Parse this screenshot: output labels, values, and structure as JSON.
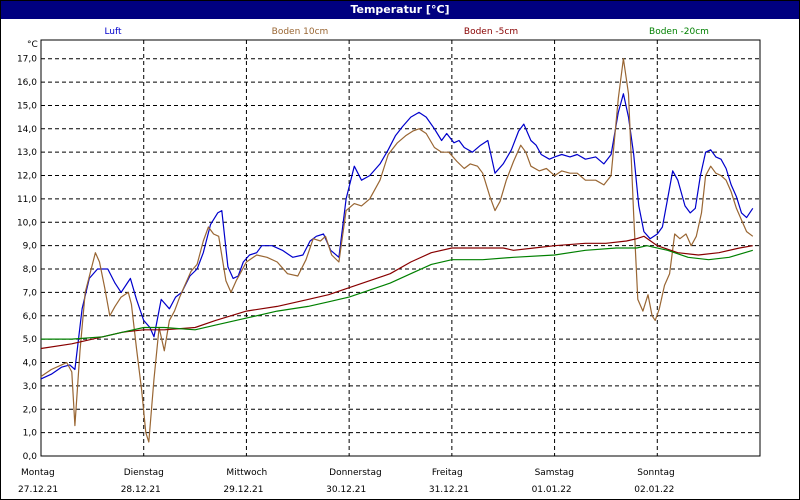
{
  "window": {
    "title": "Temperatur [°C]"
  },
  "chart_data": {
    "type": "line",
    "title": "Temperatur [°C]",
    "ylabel": "°C",
    "ylim": [
      0,
      17.8
    ],
    "yticks": [
      "0,0",
      "1,0",
      "2,0",
      "3,0",
      "4,0",
      "5,0",
      "6,0",
      "7,0",
      "8,0",
      "9,0",
      "10,0",
      "11,0",
      "12,0",
      "13,0",
      "14,0",
      "15,0",
      "16,0",
      "17,0"
    ],
    "xlim": [
      0,
      7
    ],
    "days": [
      {
        "name": "Montag",
        "date": "27.12.21"
      },
      {
        "name": "Dienstag",
        "date": "28.12.21"
      },
      {
        "name": "Mittwoch",
        "date": "29.12.21"
      },
      {
        "name": "Donnerstag",
        "date": "30.12.21"
      },
      {
        "name": "Freitag",
        "date": "31.12.21"
      },
      {
        "name": "Samstag",
        "date": "01.01.22"
      },
      {
        "name": "Sonntag",
        "date": "02.01.22"
      }
    ],
    "grid": true,
    "legend_position": "top",
    "series": [
      {
        "name": "Luft",
        "color": "#0000cc",
        "points": [
          [
            0,
            3.3
          ],
          [
            0.1,
            3.5
          ],
          [
            0.2,
            3.8
          ],
          [
            0.28,
            3.9
          ],
          [
            0.33,
            3.7
          ],
          [
            0.4,
            6.3
          ],
          [
            0.47,
            7.6
          ],
          [
            0.55,
            8.0
          ],
          [
            0.65,
            8.0
          ],
          [
            0.72,
            7.4
          ],
          [
            0.78,
            7.0
          ],
          [
            0.87,
            7.6
          ],
          [
            0.93,
            6.7
          ],
          [
            1.0,
            5.8
          ],
          [
            1.06,
            5.5
          ],
          [
            1.1,
            5.1
          ],
          [
            1.17,
            6.7
          ],
          [
            1.25,
            6.3
          ],
          [
            1.31,
            6.8
          ],
          [
            1.37,
            7.0
          ],
          [
            1.45,
            7.7
          ],
          [
            1.52,
            8.0
          ],
          [
            1.58,
            8.7
          ],
          [
            1.65,
            9.9
          ],
          [
            1.72,
            10.4
          ],
          [
            1.76,
            10.5
          ],
          [
            1.82,
            8.1
          ],
          [
            1.87,
            7.6
          ],
          [
            1.92,
            7.7
          ],
          [
            1.97,
            8.3
          ],
          [
            2.03,
            8.6
          ],
          [
            2.1,
            8.7
          ],
          [
            2.15,
            9.0
          ],
          [
            2.25,
            9.0
          ],
          [
            2.35,
            8.8
          ],
          [
            2.45,
            8.5
          ],
          [
            2.55,
            8.6
          ],
          [
            2.62,
            9.2
          ],
          [
            2.68,
            9.4
          ],
          [
            2.75,
            9.5
          ],
          [
            2.82,
            8.8
          ],
          [
            2.9,
            8.5
          ],
          [
            2.97,
            11.0
          ],
          [
            3.05,
            12.4
          ],
          [
            3.12,
            11.8
          ],
          [
            3.2,
            12.0
          ],
          [
            3.3,
            12.5
          ],
          [
            3.38,
            13.1
          ],
          [
            3.45,
            13.7
          ],
          [
            3.52,
            14.1
          ],
          [
            3.6,
            14.5
          ],
          [
            3.68,
            14.7
          ],
          [
            3.75,
            14.5
          ],
          [
            3.83,
            14.0
          ],
          [
            3.9,
            13.5
          ],
          [
            3.95,
            13.8
          ],
          [
            4.02,
            13.4
          ],
          [
            4.07,
            13.5
          ],
          [
            4.12,
            13.2
          ],
          [
            4.2,
            13.0
          ],
          [
            4.28,
            13.3
          ],
          [
            4.35,
            13.5
          ],
          [
            4.42,
            12.1
          ],
          [
            4.5,
            12.5
          ],
          [
            4.58,
            13.1
          ],
          [
            4.65,
            13.9
          ],
          [
            4.7,
            14.2
          ],
          [
            4.77,
            13.5
          ],
          [
            4.82,
            13.3
          ],
          [
            4.87,
            12.9
          ],
          [
            4.95,
            12.7
          ],
          [
            5.0,
            12.8
          ],
          [
            5.07,
            12.9
          ],
          [
            5.15,
            12.8
          ],
          [
            5.22,
            12.9
          ],
          [
            5.3,
            12.7
          ],
          [
            5.4,
            12.8
          ],
          [
            5.48,
            12.5
          ],
          [
            5.55,
            12.9
          ],
          [
            5.62,
            14.7
          ],
          [
            5.67,
            15.5
          ],
          [
            5.72,
            14.5
          ],
          [
            5.77,
            12.9
          ],
          [
            5.82,
            10.7
          ],
          [
            5.87,
            9.6
          ],
          [
            5.93,
            9.3
          ],
          [
            6.0,
            9.5
          ],
          [
            6.05,
            9.8
          ],
          [
            6.1,
            11.0
          ],
          [
            6.15,
            12.2
          ],
          [
            6.2,
            11.8
          ],
          [
            6.27,
            10.7
          ],
          [
            6.32,
            10.4
          ],
          [
            6.37,
            10.6
          ],
          [
            6.42,
            12.0
          ],
          [
            6.47,
            13.0
          ],
          [
            6.52,
            13.1
          ],
          [
            6.57,
            12.8
          ],
          [
            6.62,
            12.7
          ],
          [
            6.67,
            12.3
          ],
          [
            6.72,
            11.6
          ],
          [
            6.77,
            11.1
          ],
          [
            6.82,
            10.4
          ],
          [
            6.87,
            10.2
          ],
          [
            6.93,
            10.6
          ]
        ]
      },
      {
        "name": "Boden 10cm",
        "color": "#996633",
        "points": [
          [
            0,
            3.4
          ],
          [
            0.1,
            3.7
          ],
          [
            0.2,
            3.9
          ],
          [
            0.25,
            4.0
          ],
          [
            0.3,
            3.6
          ],
          [
            0.33,
            1.3
          ],
          [
            0.38,
            4.5
          ],
          [
            0.43,
            7.0
          ],
          [
            0.5,
            8.2
          ],
          [
            0.53,
            8.7
          ],
          [
            0.57,
            8.3
          ],
          [
            0.62,
            7.2
          ],
          [
            0.67,
            6.0
          ],
          [
            0.72,
            6.4
          ],
          [
            0.78,
            6.8
          ],
          [
            0.85,
            7.0
          ],
          [
            0.88,
            6.5
          ],
          [
            0.93,
            4.6
          ],
          [
            0.98,
            2.8
          ],
          [
            1.02,
            1.0
          ],
          [
            1.05,
            0.6
          ],
          [
            1.1,
            3.3
          ],
          [
            1.15,
            5.5
          ],
          [
            1.2,
            4.5
          ],
          [
            1.25,
            5.8
          ],
          [
            1.3,
            6.2
          ],
          [
            1.35,
            6.8
          ],
          [
            1.4,
            7.3
          ],
          [
            1.46,
            7.9
          ],
          [
            1.52,
            8.2
          ],
          [
            1.58,
            9.2
          ],
          [
            1.63,
            9.8
          ],
          [
            1.68,
            9.5
          ],
          [
            1.73,
            9.4
          ],
          [
            1.8,
            7.5
          ],
          [
            1.85,
            7.0
          ],
          [
            1.9,
            7.5
          ],
          [
            1.95,
            7.9
          ],
          [
            2.0,
            8.3
          ],
          [
            2.1,
            8.6
          ],
          [
            2.2,
            8.5
          ],
          [
            2.3,
            8.3
          ],
          [
            2.4,
            7.8
          ],
          [
            2.5,
            7.7
          ],
          [
            2.58,
            8.4
          ],
          [
            2.65,
            9.3
          ],
          [
            2.72,
            9.2
          ],
          [
            2.77,
            9.4
          ],
          [
            2.83,
            8.6
          ],
          [
            2.9,
            8.3
          ],
          [
            2.97,
            10.5
          ],
          [
            3.05,
            10.8
          ],
          [
            3.12,
            10.7
          ],
          [
            3.2,
            11.0
          ],
          [
            3.3,
            11.8
          ],
          [
            3.38,
            12.9
          ],
          [
            3.47,
            13.4
          ],
          [
            3.55,
            13.7
          ],
          [
            3.62,
            13.9
          ],
          [
            3.68,
            14.0
          ],
          [
            3.75,
            13.8
          ],
          [
            3.83,
            13.2
          ],
          [
            3.9,
            13.0
          ],
          [
            3.97,
            13.0
          ],
          [
            4.05,
            12.6
          ],
          [
            4.12,
            12.3
          ],
          [
            4.18,
            12.5
          ],
          [
            4.25,
            12.4
          ],
          [
            4.3,
            12.1
          ],
          [
            4.37,
            11.1
          ],
          [
            4.42,
            10.5
          ],
          [
            4.47,
            10.9
          ],
          [
            4.53,
            11.8
          ],
          [
            4.6,
            12.6
          ],
          [
            4.67,
            13.3
          ],
          [
            4.72,
            13.0
          ],
          [
            4.77,
            12.4
          ],
          [
            4.85,
            12.2
          ],
          [
            4.92,
            12.3
          ],
          [
            5.0,
            12.0
          ],
          [
            5.07,
            12.2
          ],
          [
            5.15,
            12.1
          ],
          [
            5.22,
            12.1
          ],
          [
            5.3,
            11.8
          ],
          [
            5.4,
            11.8
          ],
          [
            5.48,
            11.6
          ],
          [
            5.55,
            12.0
          ],
          [
            5.62,
            15.3
          ],
          [
            5.67,
            17.0
          ],
          [
            5.72,
            15.5
          ],
          [
            5.77,
            10.3
          ],
          [
            5.81,
            6.7
          ],
          [
            5.86,
            6.2
          ],
          [
            5.91,
            6.9
          ],
          [
            5.95,
            6.0
          ],
          [
            5.98,
            5.8
          ],
          [
            6.02,
            6.3
          ],
          [
            6.07,
            7.3
          ],
          [
            6.12,
            7.8
          ],
          [
            6.17,
            9.5
          ],
          [
            6.22,
            9.3
          ],
          [
            6.28,
            9.5
          ],
          [
            6.33,
            9.0
          ],
          [
            6.38,
            9.4
          ],
          [
            6.43,
            10.4
          ],
          [
            6.47,
            12.0
          ],
          [
            6.52,
            12.4
          ],
          [
            6.57,
            12.1
          ],
          [
            6.62,
            12.0
          ],
          [
            6.67,
            11.8
          ],
          [
            6.72,
            11.3
          ],
          [
            6.77,
            10.6
          ],
          [
            6.82,
            10.1
          ],
          [
            6.87,
            9.6
          ],
          [
            6.93,
            9.4
          ]
        ]
      },
      {
        "name": "Boden -5cm",
        "color": "#880000",
        "points": [
          [
            0,
            4.6
          ],
          [
            0.3,
            4.8
          ],
          [
            0.6,
            5.1
          ],
          [
            0.8,
            5.3
          ],
          [
            1.0,
            5.4
          ],
          [
            1.2,
            5.4
          ],
          [
            1.5,
            5.5
          ],
          [
            1.7,
            5.8
          ],
          [
            2.0,
            6.2
          ],
          [
            2.3,
            6.4
          ],
          [
            2.6,
            6.7
          ],
          [
            2.8,
            6.9
          ],
          [
            3.0,
            7.2
          ],
          [
            3.2,
            7.5
          ],
          [
            3.4,
            7.8
          ],
          [
            3.6,
            8.3
          ],
          [
            3.8,
            8.7
          ],
          [
            4.0,
            8.9
          ],
          [
            4.2,
            8.9
          ],
          [
            4.5,
            8.9
          ],
          [
            4.6,
            8.8
          ],
          [
            4.8,
            8.9
          ],
          [
            5.0,
            9.0
          ],
          [
            5.3,
            9.1
          ],
          [
            5.5,
            9.1
          ],
          [
            5.7,
            9.2
          ],
          [
            5.8,
            9.3
          ],
          [
            5.87,
            9.4
          ],
          [
            6.0,
            9.0
          ],
          [
            6.2,
            8.7
          ],
          [
            6.4,
            8.6
          ],
          [
            6.6,
            8.7
          ],
          [
            6.8,
            8.9
          ],
          [
            6.93,
            9.0
          ]
        ]
      },
      {
        "name": "Boden -20cm",
        "color": "#008000",
        "points": [
          [
            0,
            5.0
          ],
          [
            0.3,
            5.0
          ],
          [
            0.6,
            5.1
          ],
          [
            0.8,
            5.3
          ],
          [
            1.0,
            5.5
          ],
          [
            1.2,
            5.5
          ],
          [
            1.5,
            5.4
          ],
          [
            1.7,
            5.6
          ],
          [
            2.0,
            5.9
          ],
          [
            2.3,
            6.2
          ],
          [
            2.6,
            6.4
          ],
          [
            2.8,
            6.6
          ],
          [
            3.0,
            6.8
          ],
          [
            3.2,
            7.1
          ],
          [
            3.4,
            7.4
          ],
          [
            3.6,
            7.8
          ],
          [
            3.8,
            8.2
          ],
          [
            4.0,
            8.4
          ],
          [
            4.3,
            8.4
          ],
          [
            4.6,
            8.5
          ],
          [
            5.0,
            8.6
          ],
          [
            5.3,
            8.8
          ],
          [
            5.6,
            8.9
          ],
          [
            5.8,
            8.9
          ],
          [
            5.9,
            9.0
          ],
          [
            6.1,
            8.8
          ],
          [
            6.3,
            8.5
          ],
          [
            6.5,
            8.4
          ],
          [
            6.7,
            8.5
          ],
          [
            6.93,
            8.8
          ]
        ]
      }
    ]
  }
}
